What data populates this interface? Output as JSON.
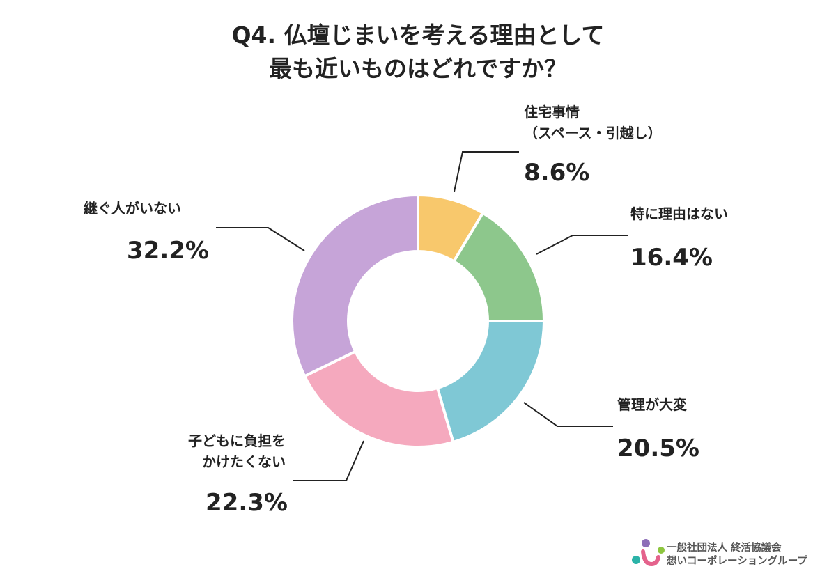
{
  "chart_data": {
    "type": "pie",
    "variant": "donut",
    "title_lines": [
      "Q4. 仏壇じまいを考える理由として",
      "最も近いものはどれですか？"
    ],
    "start": "top",
    "direction": "clockwise",
    "slices": [
      {
        "label_lines": [
          "住宅事情",
          "（スペース・引越し）"
        ],
        "value": 8.6,
        "value_label": "8.6%",
        "color": "#F8C86C"
      },
      {
        "label_lines": [
          "特に理由はない"
        ],
        "value": 16.4,
        "value_label": "16.4%",
        "color": "#8DC78C"
      },
      {
        "label_lines": [
          "管理が大変"
        ],
        "value": 20.5,
        "value_label": "20.5%",
        "color": "#7FC8D5"
      },
      {
        "label_lines": [
          "子どもに負担を",
          "かけたくない"
        ],
        "value": 22.3,
        "value_label": "22.3%",
        "color": "#F5A9BE"
      },
      {
        "label_lines": [
          "継ぐ人がいない"
        ],
        "value": 32.2,
        "value_label": "32.2%",
        "color": "#C6A4D8"
      }
    ]
  },
  "logo": {
    "line1": "一般社団法人 終活協議会",
    "line2": "想いコーポレーショングループ"
  }
}
